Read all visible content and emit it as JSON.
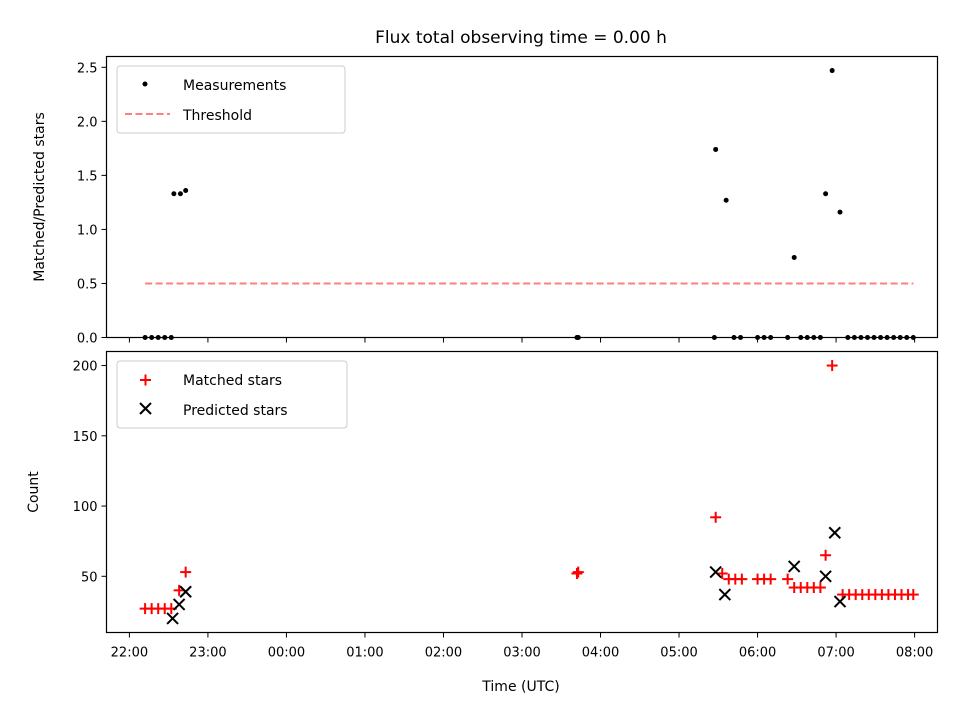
{
  "figure": {
    "title": "Flux total observing time = 0.00 h",
    "x_label": "Time (UTC)"
  },
  "chart_data": [
    {
      "type": "scatter",
      "panel": "top",
      "ylabel": "Matched/Predicted stars",
      "xlim": [
        "22:00",
        "08:00"
      ],
      "ylim": [
        0,
        2.6
      ],
      "x_ticks": [
        "22:00",
        "23:00",
        "00:00",
        "01:00",
        "02:00",
        "03:00",
        "04:00",
        "05:00",
        "06:00",
        "07:00",
        "08:00"
      ],
      "y_ticks": [
        "0.0",
        "0.5",
        "1.0",
        "1.5",
        "2.0",
        "2.5"
      ],
      "grid": false,
      "legend_position": "top-left",
      "series": [
        {
          "name": "Measurements",
          "color": "#000000",
          "marker": "dot",
          "points": [
            {
              "x": "22:12",
              "y": 0
            },
            {
              "x": "22:17",
              "y": 0
            },
            {
              "x": "22:22",
              "y": 0
            },
            {
              "x": "22:27",
              "y": 0
            },
            {
              "x": "22:32",
              "y": 0
            },
            {
              "x": "22:34",
              "y": 1.33
            },
            {
              "x": "22:39",
              "y": 1.33
            },
            {
              "x": "22:43",
              "y": 1.36
            },
            {
              "x": "03:42",
              "y": 0
            },
            {
              "x": "03:43",
              "y": 0
            },
            {
              "x": "05:27",
              "y": 0
            },
            {
              "x": "05:28",
              "y": 1.74
            },
            {
              "x": "05:36",
              "y": 1.27
            },
            {
              "x": "05:42",
              "y": 0
            },
            {
              "x": "05:47",
              "y": 0
            },
            {
              "x": "06:00",
              "y": 0
            },
            {
              "x": "06:05",
              "y": 0
            },
            {
              "x": "06:10",
              "y": 0
            },
            {
              "x": "06:23",
              "y": 0
            },
            {
              "x": "06:28",
              "y": 0.74
            },
            {
              "x": "06:33",
              "y": 0
            },
            {
              "x": "06:38",
              "y": 0
            },
            {
              "x": "06:43",
              "y": 0
            },
            {
              "x": "06:48",
              "y": 0
            },
            {
              "x": "06:52",
              "y": 1.33
            },
            {
              "x": "06:57",
              "y": 2.47
            },
            {
              "x": "07:03",
              "y": 1.16
            },
            {
              "x": "07:09",
              "y": 0
            },
            {
              "x": "07:14",
              "y": 0
            },
            {
              "x": "07:19",
              "y": 0
            },
            {
              "x": "07:24",
              "y": 0
            },
            {
              "x": "07:29",
              "y": 0
            },
            {
              "x": "07:34",
              "y": 0
            },
            {
              "x": "07:39",
              "y": 0
            },
            {
              "x": "07:44",
              "y": 0
            },
            {
              "x": "07:49",
              "y": 0
            },
            {
              "x": "07:54",
              "y": 0
            },
            {
              "x": "07:59",
              "y": 0
            }
          ]
        },
        {
          "name": "Threshold",
          "color": "#ff7f7f",
          "line_style": "dashed",
          "points": [
            {
              "x": "22:12",
              "y": 0.5
            },
            {
              "x": "07:59",
              "y": 0.5
            }
          ]
        }
      ]
    },
    {
      "type": "scatter",
      "panel": "bottom",
      "ylabel": "Count",
      "xlabel": "Time (UTC)",
      "xlim": [
        "22:00",
        "08:00"
      ],
      "ylim": [
        10,
        210
      ],
      "x_ticks": [
        "22:00",
        "23:00",
        "00:00",
        "01:00",
        "02:00",
        "03:00",
        "04:00",
        "05:00",
        "06:00",
        "07:00",
        "08:00"
      ],
      "y_ticks": [
        "50",
        "100",
        "150",
        "200"
      ],
      "grid": false,
      "legend_position": "top-left",
      "series": [
        {
          "name": "Matched stars",
          "color": "#ff0000",
          "marker": "plus",
          "points": [
            {
              "x": "22:12",
              "y": 27
            },
            {
              "x": "22:17",
              "y": 27
            },
            {
              "x": "22:22",
              "y": 27
            },
            {
              "x": "22:27",
              "y": 27
            },
            {
              "x": "22:32",
              "y": 27
            },
            {
              "x": "22:38",
              "y": 40
            },
            {
              "x": "22:43",
              "y": 53
            },
            {
              "x": "03:42",
              "y": 52
            },
            {
              "x": "03:43",
              "y": 53
            },
            {
              "x": "05:28",
              "y": 92
            },
            {
              "x": "05:33",
              "y": 52
            },
            {
              "x": "05:38",
              "y": 48
            },
            {
              "x": "05:43",
              "y": 48
            },
            {
              "x": "05:48",
              "y": 48
            },
            {
              "x": "06:00",
              "y": 48
            },
            {
              "x": "06:05",
              "y": 48
            },
            {
              "x": "06:10",
              "y": 48
            },
            {
              "x": "06:23",
              "y": 48
            },
            {
              "x": "06:28",
              "y": 42
            },
            {
              "x": "06:33",
              "y": 42
            },
            {
              "x": "06:38",
              "y": 42
            },
            {
              "x": "06:43",
              "y": 42
            },
            {
              "x": "06:48",
              "y": 42
            },
            {
              "x": "06:52",
              "y": 65
            },
            {
              "x": "06:57",
              "y": 200
            },
            {
              "x": "07:05",
              "y": 37
            },
            {
              "x": "07:10",
              "y": 37
            },
            {
              "x": "07:15",
              "y": 37
            },
            {
              "x": "07:20",
              "y": 37
            },
            {
              "x": "07:25",
              "y": 37
            },
            {
              "x": "07:30",
              "y": 37
            },
            {
              "x": "07:35",
              "y": 37
            },
            {
              "x": "07:40",
              "y": 37
            },
            {
              "x": "07:45",
              "y": 37
            },
            {
              "x": "07:50",
              "y": 37
            },
            {
              "x": "07:55",
              "y": 37
            },
            {
              "x": "07:59",
              "y": 37
            }
          ]
        },
        {
          "name": "Predicted stars",
          "color": "#000000",
          "marker": "x",
          "points": [
            {
              "x": "22:33",
              "y": 20
            },
            {
              "x": "22:38",
              "y": 30
            },
            {
              "x": "22:43",
              "y": 39
            },
            {
              "x": "05:28",
              "y": 53
            },
            {
              "x": "05:35",
              "y": 37
            },
            {
              "x": "06:28",
              "y": 57
            },
            {
              "x": "06:52",
              "y": 50
            },
            {
              "x": "06:59",
              "y": 81
            },
            {
              "x": "07:03",
              "y": 32
            }
          ]
        }
      ]
    }
  ]
}
